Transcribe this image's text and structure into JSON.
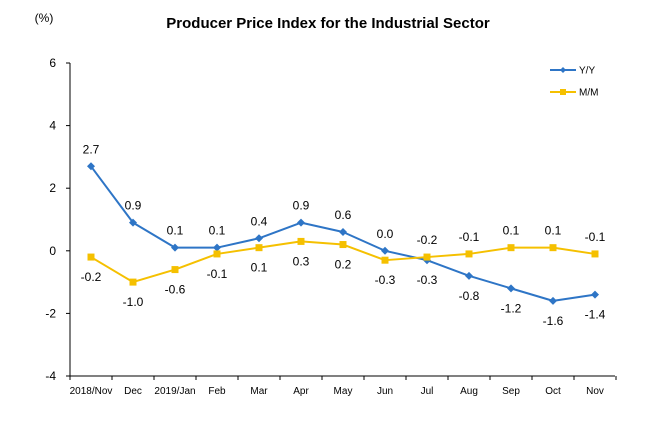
{
  "chart_data": {
    "type": "line",
    "title": "Producer Price Index for the Industrial Sector",
    "unit_label": "(%)",
    "categories": [
      "2018/Nov",
      "Dec",
      "2019/Jan",
      "Feb",
      "Mar",
      "Apr",
      "May",
      "Jun",
      "Jul",
      "Aug",
      "Sep",
      "Oct",
      "Nov"
    ],
    "ylim": [
      -4,
      6
    ],
    "yticks": [
      -4,
      -2,
      0,
      2,
      4,
      6
    ],
    "legend_position": "top-right",
    "series": [
      {
        "name": "Y/Y",
        "color": "#2E75C6",
        "marker": "diamond",
        "values": [
          2.7,
          0.9,
          0.1,
          0.1,
          0.4,
          0.9,
          0.6,
          0.0,
          -0.3,
          -0.8,
          -1.2,
          -1.6,
          -1.4
        ],
        "labels": [
          "2.7",
          "0.9",
          "0.1",
          "0.1",
          "0.4",
          "0.9",
          "0.6",
          "0.0",
          "-0.3",
          "-0.8",
          "-1.2",
          "-1.6",
          "-1.4"
        ],
        "label_pos": [
          "above",
          "above",
          "above",
          "above",
          "above",
          "above",
          "above",
          "above",
          "below",
          "below",
          "below",
          "below",
          "below"
        ]
      },
      {
        "name": "M/M",
        "color": "#F5C000",
        "marker": "square",
        "values": [
          -0.2,
          -1.0,
          -0.6,
          -0.1,
          0.1,
          0.3,
          0.2,
          -0.3,
          -0.2,
          -0.1,
          0.1,
          0.1,
          -0.1
        ],
        "labels": [
          "-0.2",
          "-1.0",
          "-0.6",
          "-0.1",
          "0.1",
          "0.3",
          "0.2",
          "-0.3",
          "-0.2",
          "-0.1",
          "0.1",
          "0.1",
          "-0.1"
        ],
        "label_pos": [
          "below",
          "below",
          "below",
          "below",
          "below",
          "below",
          "below",
          "below",
          "above",
          "above",
          "above",
          "above",
          "above"
        ]
      }
    ]
  }
}
